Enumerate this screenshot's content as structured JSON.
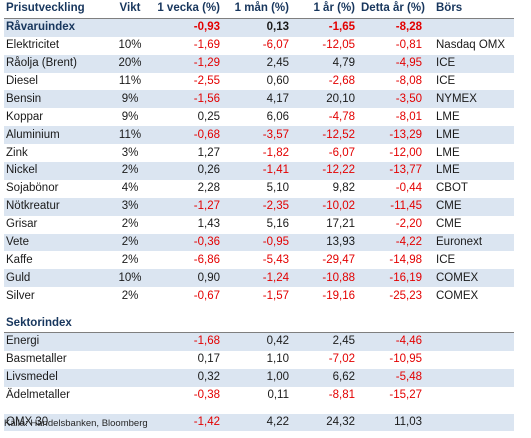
{
  "header": {
    "label": "Prisutveckling",
    "vikt": "Vikt",
    "week": "1 vecka (%)",
    "month": "1 mån (%)",
    "year": "1 år (%)",
    "ytd": "Detta år (%)",
    "exchange": "Börs"
  },
  "index_row": {
    "name": "Råvaruindex",
    "week": "-0,93",
    "month": "0,13",
    "year": "-1,65",
    "ytd": "-8,28"
  },
  "commodities": [
    {
      "name": "Elektricitet",
      "vikt": "10%",
      "week": "-1,69",
      "month": "-6,07",
      "year": "-12,05",
      "ytd": "-0,81",
      "exchange": "Nasdaq OMX"
    },
    {
      "name": "Råolja (Brent)",
      "vikt": "20%",
      "week": "-1,29",
      "month": "2,45",
      "year": "4,79",
      "ytd": "-4,95",
      "exchange": "ICE"
    },
    {
      "name": "Diesel",
      "vikt": "11%",
      "week": "-2,55",
      "month": "0,60",
      "year": "-2,68",
      "ytd": "-8,08",
      "exchange": "ICE"
    },
    {
      "name": "Bensin",
      "vikt": "9%",
      "week": "-1,56",
      "month": "4,17",
      "year": "20,10",
      "ytd": "-3,50",
      "exchange": "NYMEX"
    },
    {
      "name": "Koppar",
      "vikt": "9%",
      "week": "0,25",
      "month": "6,06",
      "year": "-4,78",
      "ytd": "-8,01",
      "exchange": "LME"
    },
    {
      "name": "Aluminium",
      "vikt": "11%",
      "week": "-0,68",
      "month": "-3,57",
      "year": "-12,52",
      "ytd": "-13,29",
      "exchange": "LME"
    },
    {
      "name": "Zink",
      "vikt": "3%",
      "week": "1,27",
      "month": "-1,82",
      "year": "-6,07",
      "ytd": "-12,00",
      "exchange": "LME"
    },
    {
      "name": "Nickel",
      "vikt": "2%",
      "week": "0,26",
      "month": "-1,41",
      "year": "-12,22",
      "ytd": "-13,77",
      "exchange": "LME"
    },
    {
      "name": "Sojabönor",
      "vikt": "4%",
      "week": "2,28",
      "month": "5,10",
      "year": "9,82",
      "ytd": "-0,44",
      "exchange": "CBOT"
    },
    {
      "name": "Nötkreatur",
      "vikt": "3%",
      "week": "-1,27",
      "month": "-2,35",
      "year": "-10,02",
      "ytd": "-11,45",
      "exchange": "CME"
    },
    {
      "name": "Grisar",
      "vikt": "2%",
      "week": "1,43",
      "month": "5,16",
      "year": "17,21",
      "ytd": "-2,20",
      "exchange": "CME"
    },
    {
      "name": "Vete",
      "vikt": "2%",
      "week": "-0,36",
      "month": "-0,95",
      "year": "13,93",
      "ytd": "-4,22",
      "exchange": "Euronext"
    },
    {
      "name": "Kaffe",
      "vikt": "2%",
      "week": "-6,86",
      "month": "-5,43",
      "year": "-29,47",
      "ytd": "-14,98",
      "exchange": "ICE"
    },
    {
      "name": "Guld",
      "vikt": "10%",
      "week": "0,90",
      "month": "-1,24",
      "year": "-10,88",
      "ytd": "-16,19",
      "exchange": "COMEX"
    },
    {
      "name": "Silver",
      "vikt": "2%",
      "week": "-0,67",
      "month": "-1,57",
      "year": "-19,16",
      "ytd": "-25,23",
      "exchange": "COMEX"
    }
  ],
  "sector": {
    "title": "Sektorindex",
    "rows": [
      {
        "name": "Energi",
        "week": "-1,68",
        "month": "0,42",
        "year": "2,45",
        "ytd": "-4,46"
      },
      {
        "name": "Basmetaller",
        "week": "0,17",
        "month": "1,10",
        "year": "-7,02",
        "ytd": "-10,95"
      },
      {
        "name": "Livsmedel",
        "week": "0,32",
        "month": "1,00",
        "year": "6,62",
        "ytd": "-5,48"
      },
      {
        "name": "Ädelmetaller",
        "week": "-0,38",
        "month": "0,11",
        "year": "-8,81",
        "ytd": "-15,27"
      }
    ]
  },
  "total": {
    "name": "OMX 30",
    "week": "-1,42",
    "month": "4,22",
    "year": "24,32",
    "ytd": "11,03"
  },
  "source": "Källa: Handelsbanken, Bloomberg",
  "colors": {
    "negative": "#e30000",
    "band": "#dbe5f1",
    "header_text": "#17365d"
  }
}
